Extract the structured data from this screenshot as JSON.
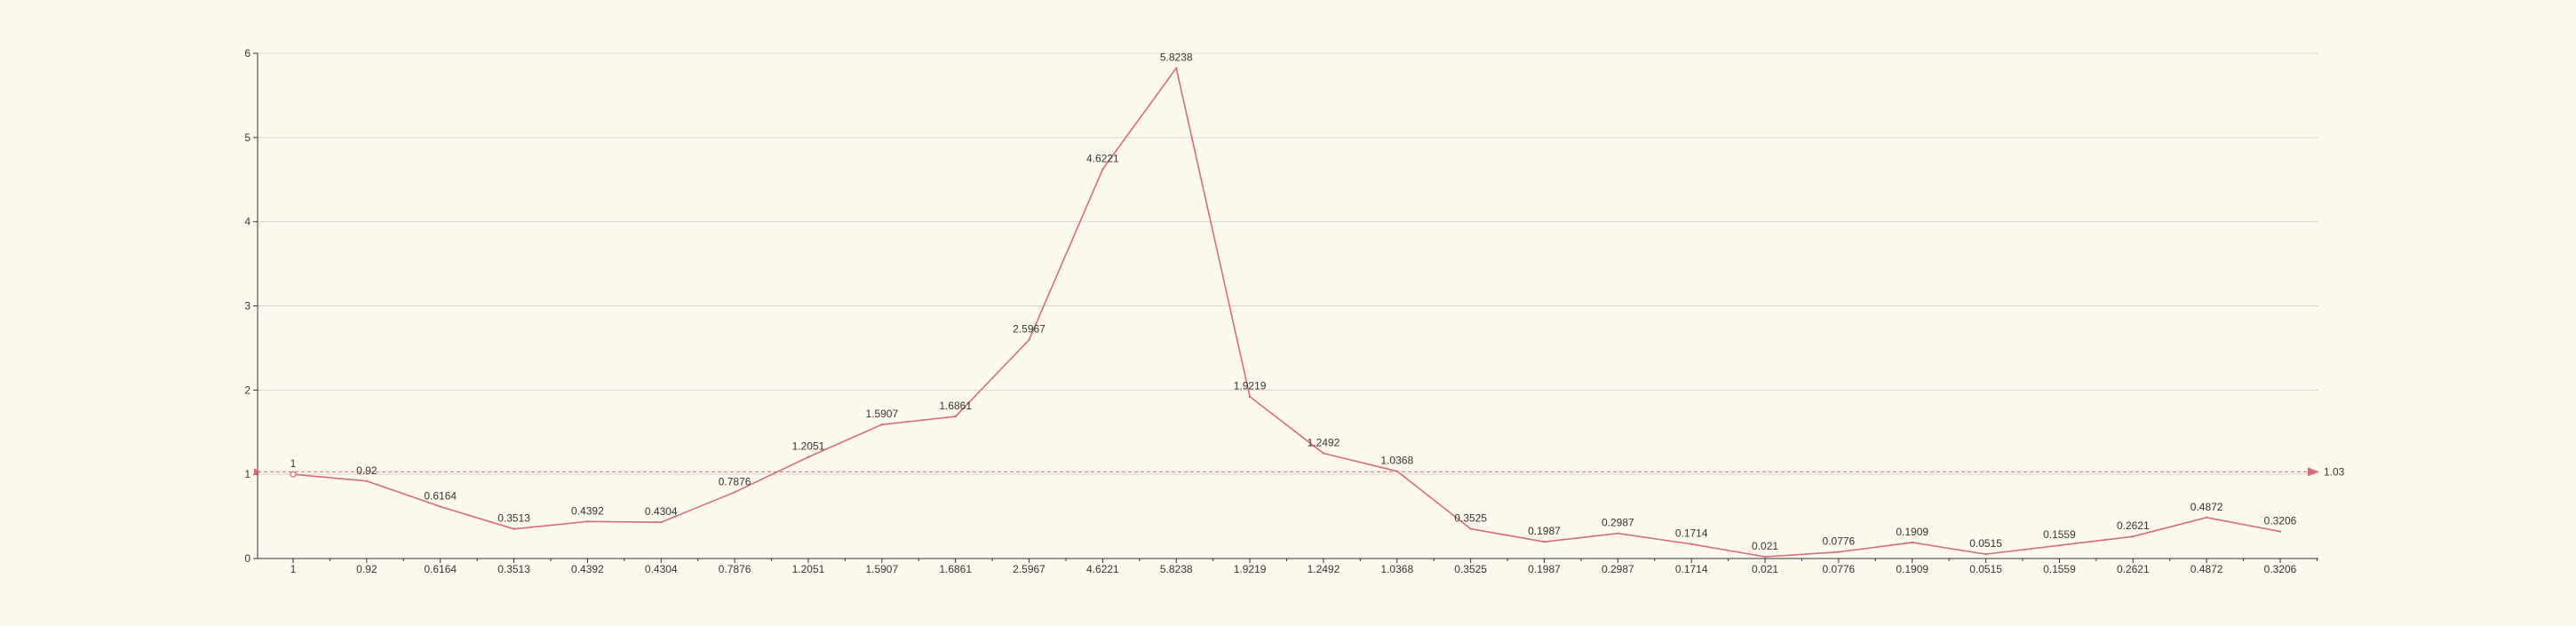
{
  "chart_data": {
    "type": "line",
    "title": "",
    "xlabel": "",
    "ylabel": "",
    "categories": [
      "1",
      "0.92",
      "0.6164",
      "0.3513",
      "0.4392",
      "0.4304",
      "0.7876",
      "1.2051",
      "1.5907",
      "1.6861",
      "2.5967",
      "4.6221",
      "5.8238",
      "1.9219",
      "1.2492",
      "1.0368",
      "0.3525",
      "0.1987",
      "0.2987",
      "0.1714",
      "0.021",
      "0.0776",
      "0.1909",
      "0.0515",
      "0.1559",
      "0.2621",
      "0.4872",
      "0.3206"
    ],
    "series": [
      {
        "values": [
          1,
          0.92,
          0.6164,
          0.3513,
          0.4392,
          0.4304,
          0.7876,
          1.2051,
          1.5907,
          1.6861,
          2.5967,
          4.6221,
          5.8238,
          1.9219,
          1.2492,
          1.0368,
          0.3525,
          0.1987,
          0.2987,
          0.1714,
          0.021,
          0.0776,
          0.1909,
          0.0515,
          0.1559,
          0.2621,
          0.4872,
          0.3206
        ],
        "data_labels": [
          "1",
          "0.92",
          "0.6164",
          "0.3513",
          "0.4392",
          "0.4304",
          "0.7876",
          "1.2051",
          "1.5907",
          "1.6861",
          "2.5967",
          "4.6221",
          "5.8238",
          "1.9219",
          "1.2492",
          "1.0368",
          "0.3525",
          "0.1987",
          "0.2987",
          "0.1714",
          "0.021",
          "0.0776",
          "0.1909",
          "0.0515",
          "0.1559",
          "0.2621",
          "0.4872",
          "0.3206"
        ]
      }
    ],
    "ylim": [
      0,
      6
    ],
    "yticks": [
      "0",
      "1",
      "2",
      "3",
      "4",
      "5",
      "6"
    ],
    "grid": true,
    "reference_line": {
      "value": 1.03,
      "label": "1.03",
      "style": "dashed"
    },
    "colors": {
      "background": "#fdf9ec",
      "line": "#d46c7b",
      "grid": "#d6d6d6",
      "axis": "#333333",
      "text": "#333333"
    }
  }
}
